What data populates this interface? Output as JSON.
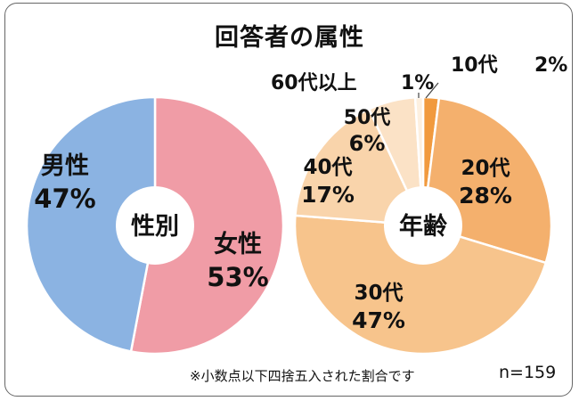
{
  "title": "回答者の属性",
  "footnote": "※小数点以下四捨五入された割合です",
  "sample_size": "n=159",
  "chart_data": [
    {
      "type": "pie",
      "center_label": "性別",
      "start": "top",
      "direction": "clockwise",
      "slices": [
        {
          "name": "女性",
          "value": 53,
          "display": "53%",
          "color": "#f09ca6",
          "label_color": "#111111"
        },
        {
          "name": "男性",
          "value": 47,
          "display": "47%",
          "color": "#8bb3e2",
          "label_color": "#111111"
        }
      ]
    },
    {
      "type": "pie",
      "center_label": "年齢",
      "start": "top",
      "direction": "clockwise",
      "slices": [
        {
          "name": "10代",
          "value": 2,
          "display": "2%",
          "color": "#f19a3e",
          "label_color": "#111111"
        },
        {
          "name": "20代",
          "value": 28,
          "display": "28%",
          "color": "#f4b06d",
          "label_color": "#111111"
        },
        {
          "name": "30代",
          "value": 47,
          "display": "47%",
          "color": "#f7c48c",
          "label_color": "#111111"
        },
        {
          "name": "40代",
          "value": 17,
          "display": "17%",
          "color": "#f9d4ab",
          "label_color": "#111111"
        },
        {
          "name": "50代",
          "value": 6,
          "display": "6%",
          "color": "#fbe2c6",
          "label_color": "#111111"
        },
        {
          "name": "60代以上",
          "value": 1,
          "display": "1%",
          "color": "#fdf0e0",
          "label_color": "#111111"
        }
      ]
    }
  ]
}
